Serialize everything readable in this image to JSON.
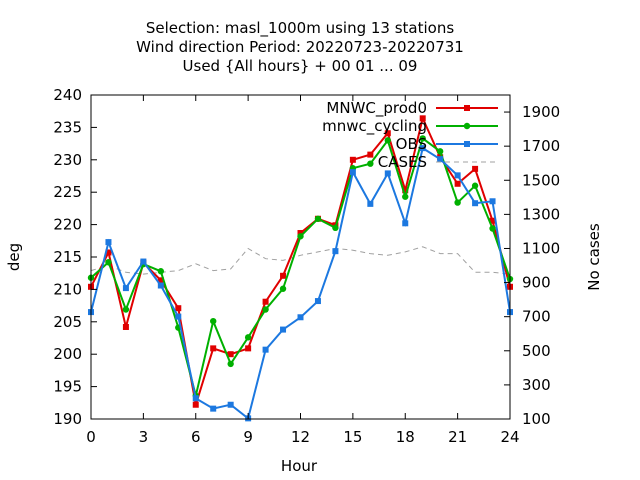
{
  "chart_data": {
    "type": "line",
    "title_lines": [
      "Selection: masl_1000m using    13 stations",
      "Wind direction   Period: 20220723-20220731",
      "Used {All hours} + 00 01 ... 09"
    ],
    "xlabel": "Hour",
    "ylabel": "deg",
    "y2label": "No cases",
    "xlim": [
      0,
      24
    ],
    "ylim": [
      190,
      240
    ],
    "y2lim": [
      100,
      2000
    ],
    "xticks": [
      0,
      3,
      6,
      9,
      12,
      15,
      18,
      21,
      24
    ],
    "yticks": [
      190,
      195,
      200,
      205,
      210,
      215,
      220,
      225,
      230,
      235,
      240
    ],
    "y2ticks": [
      100,
      300,
      500,
      700,
      900,
      1100,
      1300,
      1500,
      1700,
      1900
    ],
    "legend_position": "top-right",
    "grid": false,
    "x": [
      0,
      1,
      2,
      3,
      4,
      5,
      6,
      7,
      8,
      9,
      10,
      11,
      12,
      13,
      14,
      15,
      16,
      17,
      18,
      19,
      20,
      21,
      22,
      23,
      24
    ],
    "series": [
      {
        "name": "MNWC_prod0",
        "color": "#e00000",
        "marker": "square",
        "axis": "y",
        "values": [
          210.4,
          215.7,
          204.2,
          214.1,
          211.4,
          207.1,
          192.2,
          200.9,
          200.0,
          200.9,
          208.1,
          212.1,
          218.7,
          220.9,
          219.9,
          230.0,
          230.8,
          234.1,
          225.3,
          236.4,
          230.4,
          226.3,
          228.6,
          220.6,
          210.4
        ]
      },
      {
        "name": "mnwc_cycling",
        "color": "#00b000",
        "marker": "circle",
        "axis": "y",
        "values": [
          211.8,
          214.2,
          206.9,
          213.9,
          212.8,
          204.1,
          193.6,
          205.1,
          198.5,
          202.6,
          206.9,
          210.1,
          218.2,
          220.9,
          219.5,
          228.7,
          229.4,
          233.0,
          224.3,
          233.3,
          231.3,
          223.4,
          226.0,
          219.4,
          211.6
        ]
      },
      {
        "name": "OBS",
        "color": "#1c78e0",
        "marker": "square",
        "axis": "y",
        "values": [
          206.5,
          217.3,
          210.2,
          214.3,
          210.6,
          205.8,
          193.2,
          191.6,
          192.2,
          190.1,
          200.7,
          203.8,
          205.7,
          208.2,
          215.9,
          228.1,
          223.2,
          227.9,
          220.2,
          231.8,
          230.1,
          227.6,
          223.3,
          223.6,
          206.5
        ]
      },
      {
        "name": "CASES",
        "color": "#a0a0a0",
        "marker": "none",
        "dashed": true,
        "axis": "y2",
        "values": [
          970,
          1000,
          960,
          950,
          960,
          970,
          1010,
          970,
          980,
          1100,
          1040,
          1030,
          1060,
          1080,
          1100,
          1090,
          1070,
          1060,
          1080,
          1110,
          1070,
          1070,
          960,
          960,
          950
        ]
      }
    ]
  }
}
